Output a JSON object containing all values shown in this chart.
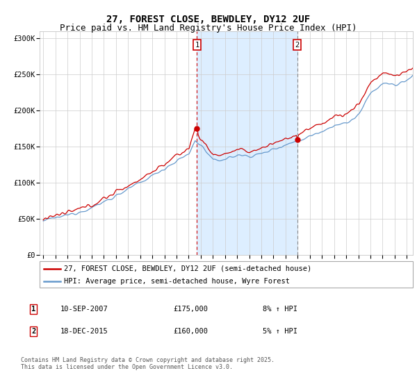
{
  "title": "27, FOREST CLOSE, BEWDLEY, DY12 2UF",
  "subtitle": "Price paid vs. HM Land Registry's House Price Index (HPI)",
  "ylabel_ticks": [
    "£0",
    "£50K",
    "£100K",
    "£150K",
    "£200K",
    "£250K",
    "£300K"
  ],
  "ytick_values": [
    0,
    50000,
    100000,
    150000,
    200000,
    250000,
    300000
  ],
  "ylim": [
    0,
    310000
  ],
  "xlim_start": 1994.7,
  "xlim_end": 2025.5,
  "line1_color": "#cc0000",
  "line2_color": "#6699cc",
  "shaded_color": "#ddeeff",
  "marker1_date": 2007.69,
  "marker1_value": 175000,
  "marker1_label": "1",
  "marker2_date": 2015.96,
  "marker2_value": 160000,
  "marker2_label": "2",
  "legend_line1": "27, FOREST CLOSE, BEWDLEY, DY12 2UF (semi-detached house)",
  "legend_line2": "HPI: Average price, semi-detached house, Wyre Forest",
  "table_row1": [
    "1",
    "10-SEP-2007",
    "£175,000",
    "8% ↑ HPI"
  ],
  "table_row2": [
    "2",
    "18-DEC-2015",
    "£160,000",
    "5% ↑ HPI"
  ],
  "footer": "Contains HM Land Registry data © Crown copyright and database right 2025.\nThis data is licensed under the Open Government Licence v3.0.",
  "title_fontsize": 10,
  "subtitle_fontsize": 9,
  "tick_fontsize": 7.5,
  "legend_fontsize": 7.5,
  "table_fontsize": 7.5,
  "footer_fontsize": 6
}
